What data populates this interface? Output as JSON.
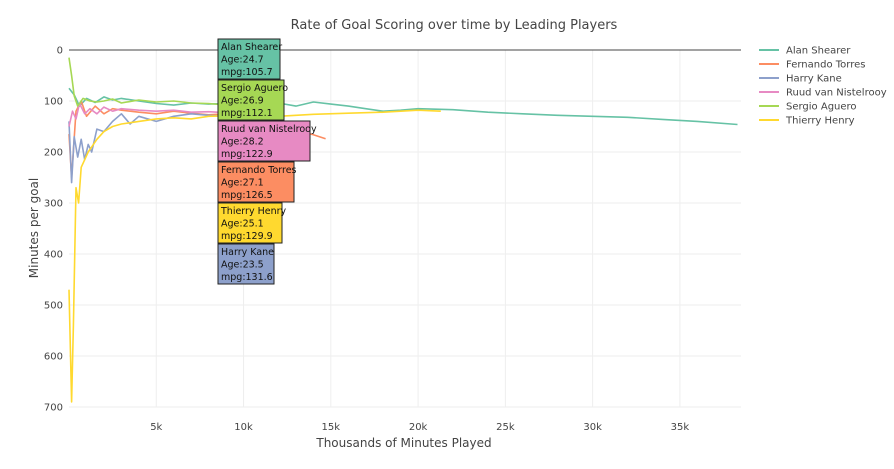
{
  "chart_data": {
    "type": "line",
    "title": "Rate of Goal Scoring over time by Leading Players",
    "xlabel": "Thousands of Minutes Played",
    "ylabel": "Minutes per goal",
    "xlim": [
      0,
      38500
    ],
    "ylim": [
      0,
      700
    ],
    "y_reversed": true,
    "x_ticks": [
      5000,
      10000,
      15000,
      20000,
      25000,
      30000,
      35000
    ],
    "x_tick_labels": [
      "5k",
      "10k",
      "15k",
      "20k",
      "25k",
      "30k",
      "35k"
    ],
    "y_ticks": [
      0,
      100,
      200,
      300,
      400,
      500,
      600,
      700
    ],
    "y_tick_labels": [
      "0",
      "100",
      "200",
      "300",
      "400",
      "500",
      "600",
      "700"
    ],
    "grid": true,
    "legend_position": "right",
    "series": [
      {
        "name": "Alan Shearer",
        "color": "#66c2a5",
        "x": [
          0,
          300,
          600,
          1000,
          1500,
          2000,
          2500,
          3000,
          4000,
          5000,
          6000,
          7000,
          8000,
          9000,
          10000,
          11000,
          12000,
          13000,
          14000,
          15000,
          16000,
          17000,
          18000,
          19000,
          20000,
          22000,
          24000,
          26000,
          28000,
          30000,
          32000,
          34000,
          36000,
          38300
        ],
        "y": [
          75,
          88,
          110,
          95,
          103,
          92,
          98,
          95,
          100,
          105,
          108,
          104,
          106,
          105,
          102,
          108,
          104,
          110,
          102,
          106,
          110,
          115,
          120,
          118,
          115,
          117,
          122,
          125,
          128,
          130,
          132,
          136,
          140,
          146
        ]
      },
      {
        "name": "Fernando Torres",
        "color": "#fc8d62",
        "x": [
          0,
          150,
          400,
          700,
          1000,
          1500,
          2000,
          2500,
          3000,
          4000,
          5000,
          6000,
          7000,
          8000,
          9000,
          10000,
          11000,
          12000,
          13000,
          14000,
          14700
        ],
        "y": [
          165,
          250,
          120,
          100,
          130,
          110,
          125,
          115,
          118,
          122,
          125,
          120,
          124,
          127,
          125,
          130,
          140,
          150,
          158,
          166,
          174
        ]
      },
      {
        "name": "Harry Kane",
        "color": "#8da0cb",
        "x": [
          0,
          150,
          300,
          500,
          700,
          900,
          1100,
          1300,
          1600,
          2000,
          2500,
          3000,
          3500,
          4000,
          5000,
          6000,
          7000,
          8000,
          8800
        ],
        "y": [
          140,
          260,
          170,
          210,
          175,
          215,
          185,
          200,
          155,
          160,
          140,
          125,
          145,
          130,
          140,
          130,
          125,
          128,
          130
        ]
      },
      {
        "name": "Ruud van Nistelrooy",
        "color": "#e78ac3",
        "x": [
          0,
          200,
          400,
          600,
          900,
          1200,
          1600,
          2000,
          2500,
          3000,
          4000,
          5000,
          6000,
          7000,
          8000,
          9000,
          10000
        ],
        "y": [
          150,
          120,
          135,
          105,
          125,
          115,
          125,
          112,
          120,
          115,
          118,
          120,
          118,
          122,
          121,
          123,
          123
        ]
      },
      {
        "name": "Sergio Aguero",
        "color": "#a6d854",
        "x": [
          0,
          150,
          300,
          500,
          800,
          1200,
          1600,
          2000,
          2500,
          3000,
          4000,
          5000,
          6000,
          7000,
          8000,
          9000,
          10000,
          11000
        ],
        "y": [
          15,
          50,
          90,
          110,
          95,
          100,
          102,
          100,
          96,
          104,
          98,
          102,
          100,
          104,
          105,
          108,
          110,
          112
        ]
      },
      {
        "name": "Thierry Henry",
        "color": "#ffd92f",
        "x": [
          0,
          150,
          250,
          400,
          550,
          700,
          900,
          1100,
          1300,
          1600,
          2000,
          2500,
          3000,
          4000,
          5000,
          6000,
          7000,
          8000,
          10000,
          12000,
          14000,
          16000,
          18000,
          20000,
          21300
        ],
        "y": [
          470,
          690,
          540,
          270,
          300,
          230,
          215,
          200,
          190,
          175,
          160,
          150,
          145,
          140,
          135,
          133,
          135,
          130,
          128,
          130,
          126,
          124,
          122,
          118,
          120
        ]
      }
    ],
    "annotations": [
      {
        "player": "Alan Shearer",
        "lines": [
          "Alan Shearer",
          "Age:24.7",
          "mpg:105.7"
        ],
        "fill": "#66c2a5",
        "x": 8800,
        "y": 105.7
      },
      {
        "player": "Sergio Aguero",
        "lines": [
          "Sergio Aguero",
          "Age:26.9",
          "mpg:112.1"
        ],
        "fill": "#a6d854",
        "x": 8800,
        "y": 112.1
      },
      {
        "player": "Ruud van Nistelrooy",
        "lines": [
          "Ruud van Nistelrooy",
          "Age:28.2",
          "mpg:122.9"
        ],
        "fill": "#e78ac3",
        "x": 8800,
        "y": 122.9
      },
      {
        "player": "Fernando Torres",
        "lines": [
          "Fernando Torres",
          "Age:27.1",
          "mpg:126.5"
        ],
        "fill": "#fc8d62",
        "x": 8800,
        "y": 126.5
      },
      {
        "player": "Thierry Henry",
        "lines": [
          "Thierry Henry",
          "Age:25.1",
          "mpg:129.9"
        ],
        "fill": "#ffd92f",
        "x": 8800,
        "y": 129.9
      },
      {
        "player": "Harry Kane",
        "lines": [
          "Harry Kane",
          "Age:23.5",
          "mpg:131.6"
        ],
        "fill": "#8da0cb",
        "x": 8800,
        "y": 131.6
      }
    ]
  }
}
